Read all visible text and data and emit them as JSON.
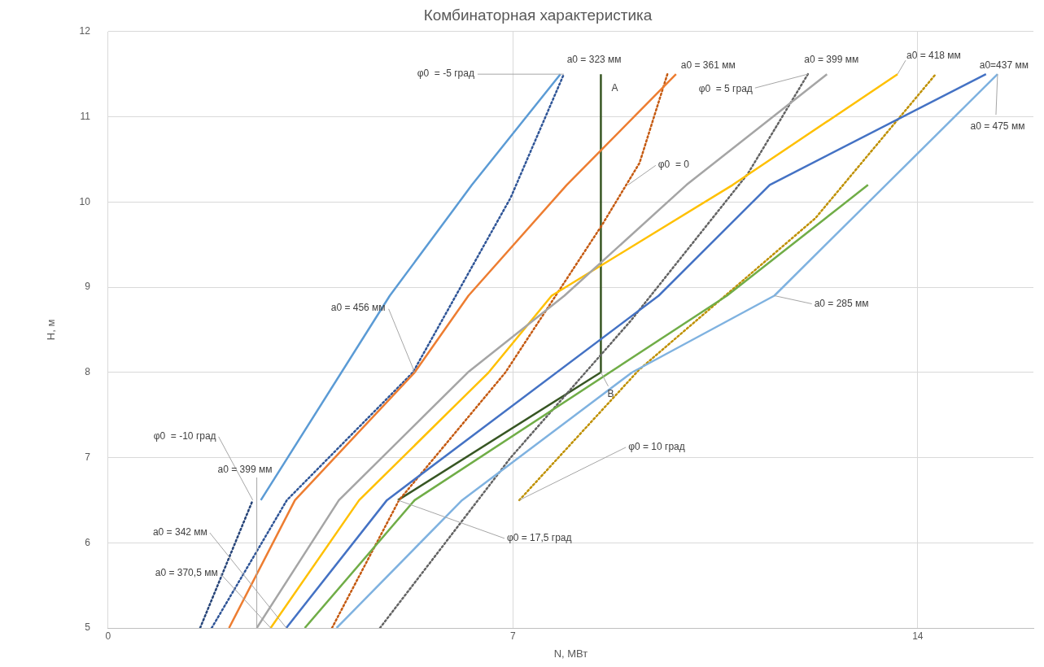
{
  "chart_data": {
    "type": "line",
    "title": "Комбинаторная характеристика",
    "xlabel": "N, МВт",
    "ylabel": "H, м",
    "xlim": [
      0,
      16
    ],
    "xticks": [
      0,
      7,
      14
    ],
    "ylim": [
      5,
      12
    ],
    "yticks": [
      5,
      6,
      7,
      8,
      9,
      10,
      11,
      12
    ],
    "grid": true,
    "legend": false,
    "marker": "none",
    "line_style": "solid",
    "series": [
      {
        "color": "#5b9bd5",
        "x": [
          2.64,
          4.87,
          6.29,
          7.82
        ],
        "values": [
          6.5,
          8.9,
          10.2,
          11.5
        ]
      },
      {
        "color": "#ed7d31",
        "x": [
          2.09,
          3.23,
          5.3,
          6.23,
          7.93,
          9.82
        ],
        "values": [
          5,
          6.5,
          8.0,
          8.9,
          10.2,
          11.5
        ]
      },
      {
        "color": "#a5a5a5",
        "x": [
          2.57,
          3.99,
          6.22,
          7.89,
          10.0,
          12.43
        ],
        "values": [
          5,
          6.5,
          8.0,
          8.9,
          10.2,
          11.5
        ]
      },
      {
        "color": "#ffc000",
        "x": [
          2.81,
          4.34,
          6.58,
          7.67,
          10.8,
          13.65
        ],
        "values": [
          5,
          6.5,
          8.0,
          8.9,
          10.2,
          11.5
        ]
      },
      {
        "color": "#4472c4",
        "x": [
          3.08,
          4.82,
          9.52,
          11.44,
          15.18
        ],
        "values": [
          5,
          6.5,
          8.9,
          10.2,
          11.5
        ]
      },
      {
        "color": "#70ad47",
        "x": [
          3.4,
          5.3,
          10.7,
          13.14
        ],
        "values": [
          5,
          6.5,
          8.9,
          10.2
        ]
      },
      {
        "color": "#7fb2e0",
        "x": [
          3.95,
          6.12,
          9.06,
          11.52,
          15.38
        ],
        "values": [
          5,
          6.5,
          8.0,
          8.9,
          11.5
        ]
      },
      {
        "color": "#264478",
        "line_style": "dotted",
        "x": [
          1.59,
          2.5
        ],
        "values": [
          5,
          6.5
        ]
      },
      {
        "color": "#2f5597",
        "line_style": "dotted",
        "x": [
          1.79,
          3.09,
          5.27,
          6.96,
          7.88
        ],
        "values": [
          5,
          6.5,
          8.0,
          10.05,
          11.5
        ]
      },
      {
        "color": "#c55a11",
        "line_style": "dotted",
        "x": [
          3.87,
          5.03,
          6.87,
          8.54,
          9.19,
          9.67
        ],
        "values": [
          5,
          6.5,
          8.0,
          9.73,
          10.46,
          11.5
        ]
      },
      {
        "color": "#636363",
        "line_style": "dotted",
        "x": [
          4.7,
          6.96,
          9.03,
          11.06,
          12.1
        ],
        "values": [
          5,
          7.0,
          8.6,
          10.33,
          11.5
        ]
      },
      {
        "color": "#bf9000",
        "line_style": "dotted",
        "x": [
          7.11,
          9.18,
          12.23,
          14.31
        ],
        "values": [
          6.5,
          8.03,
          9.81,
          11.5
        ]
      },
      {
        "color": "#375623",
        "x": [
          5.01,
          8.52,
          8.52
        ],
        "values": [
          6.5,
          8.0,
          11.5
        ]
      }
    ],
    "annotations": [
      {
        "text": "a0 = 323 мм",
        "x": 7.82,
        "y": 11.5
      },
      {
        "text": "φ0  = -5 град",
        "x": 7.88,
        "y": 11.5
      },
      {
        "text": "a0 = 361 мм",
        "x": 9.82,
        "y": 11.5
      },
      {
        "text": "a0 = 399 мм",
        "x": 12.43,
        "y": 11.5
      },
      {
        "text": "φ0  = 5 град",
        "x": 12.1,
        "y": 11.5
      },
      {
        "text": "a0 = 418 мм",
        "x": 13.65,
        "y": 11.5
      },
      {
        "text": "a0=437 мм",
        "x": 15.18,
        "y": 11.5
      },
      {
        "text": "a0 = 475 мм",
        "x": 15.38,
        "y": 11.5
      },
      {
        "text": "φ0  = 0",
        "x": 8.99,
        "y": 10.2
      },
      {
        "text": "a0 = 456 мм",
        "x": 5.3,
        "y": 8.0
      },
      {
        "text": "a0 = 285 мм",
        "x": 11.52,
        "y": 8.9
      },
      {
        "text": "φ0  = -10 град",
        "x": 2.5,
        "y": 6.5
      },
      {
        "text": "a0 = 399 мм",
        "x": 2.57,
        "y": 5
      },
      {
        "text": "a0 = 342 мм",
        "x": 3.08,
        "y": 5
      },
      {
        "text": "a0 = 370,5 мм",
        "x": 2.81,
        "y": 5
      },
      {
        "text": "φ0 = 17,5 град",
        "x": 5.01,
        "y": 6.5
      },
      {
        "text": "φ0 = 10 град",
        "x": 7.11,
        "y": 6.5
      },
      {
        "text": "A",
        "x": 8.52,
        "y": 11.5
      },
      {
        "text": "B",
        "x": 8.52,
        "y": 8.0
      }
    ]
  }
}
